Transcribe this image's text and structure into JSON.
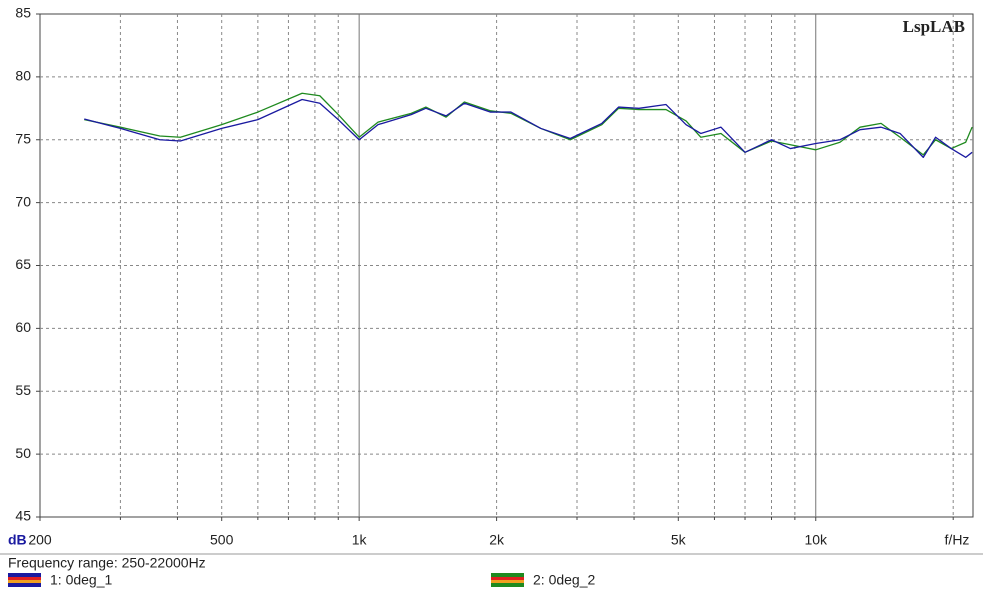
{
  "chart_data": {
    "type": "line",
    "watermark": "LspLAB",
    "x_label": "f/Hz",
    "y_label": "dB",
    "footer": "Frequency range: 250-22000Hz",
    "x_log": true,
    "grid": true,
    "xlim": [
      200,
      22100
    ],
    "ylim": [
      45,
      85
    ],
    "xticks": [
      200,
      500,
      {
        "value": 1000,
        "label": "1k"
      },
      {
        "value": 2000,
        "label": "2k"
      },
      {
        "value": 5000,
        "label": "5k"
      },
      {
        "value": 10000,
        "label": "10k"
      }
    ],
    "xminorticks": [
      300,
      400,
      600,
      700,
      800,
      900,
      3000,
      4000,
      6000,
      7000,
      8000,
      9000,
      20000
    ],
    "yticks": [
      45,
      50,
      55,
      60,
      65,
      70,
      75,
      80,
      85
    ],
    "x": [
      250,
      300,
      366,
      406,
      500,
      600,
      750,
      820,
      900,
      1000,
      1100,
      1300,
      1400,
      1550,
      1700,
      1940,
      2150,
      2500,
      2900,
      3400,
      3700,
      4100,
      4700,
      5200,
      5600,
      6200,
      7000,
      8000,
      8800,
      10000,
      11300,
      12500,
      13900,
      15300,
      17200,
      18300,
      19800,
      21300,
      22000
    ],
    "series": [
      {
        "name": "1: 0deg_1",
        "color": "#1a1aa0",
        "values": [
          76.65,
          75.9,
          75.0,
          74.9,
          75.9,
          76.6,
          78.2,
          77.9,
          76.6,
          75.0,
          76.2,
          77.0,
          77.5,
          76.9,
          77.9,
          77.2,
          77.2,
          75.9,
          75.1,
          76.3,
          77.6,
          77.5,
          77.8,
          76.2,
          75.5,
          76.0,
          74.0,
          75.0,
          74.3,
          74.7,
          75.0,
          75.8,
          76.0,
          75.5,
          73.6,
          75.2,
          74.3,
          73.6,
          74.0
        ]
      },
      {
        "name": "2: 0deg_2",
        "color": "#1f8a1f",
        "values": [
          76.6,
          76.0,
          75.3,
          75.2,
          76.2,
          77.2,
          78.7,
          78.5,
          77.0,
          75.2,
          76.4,
          77.1,
          77.6,
          76.8,
          78.0,
          77.3,
          77.1,
          75.9,
          75.0,
          76.2,
          77.5,
          77.4,
          77.4,
          76.5,
          75.2,
          75.5,
          74.0,
          74.9,
          74.6,
          74.2,
          74.8,
          76.0,
          76.3,
          75.2,
          73.8,
          75.0,
          74.3,
          74.8,
          76.0
        ]
      }
    ]
  }
}
